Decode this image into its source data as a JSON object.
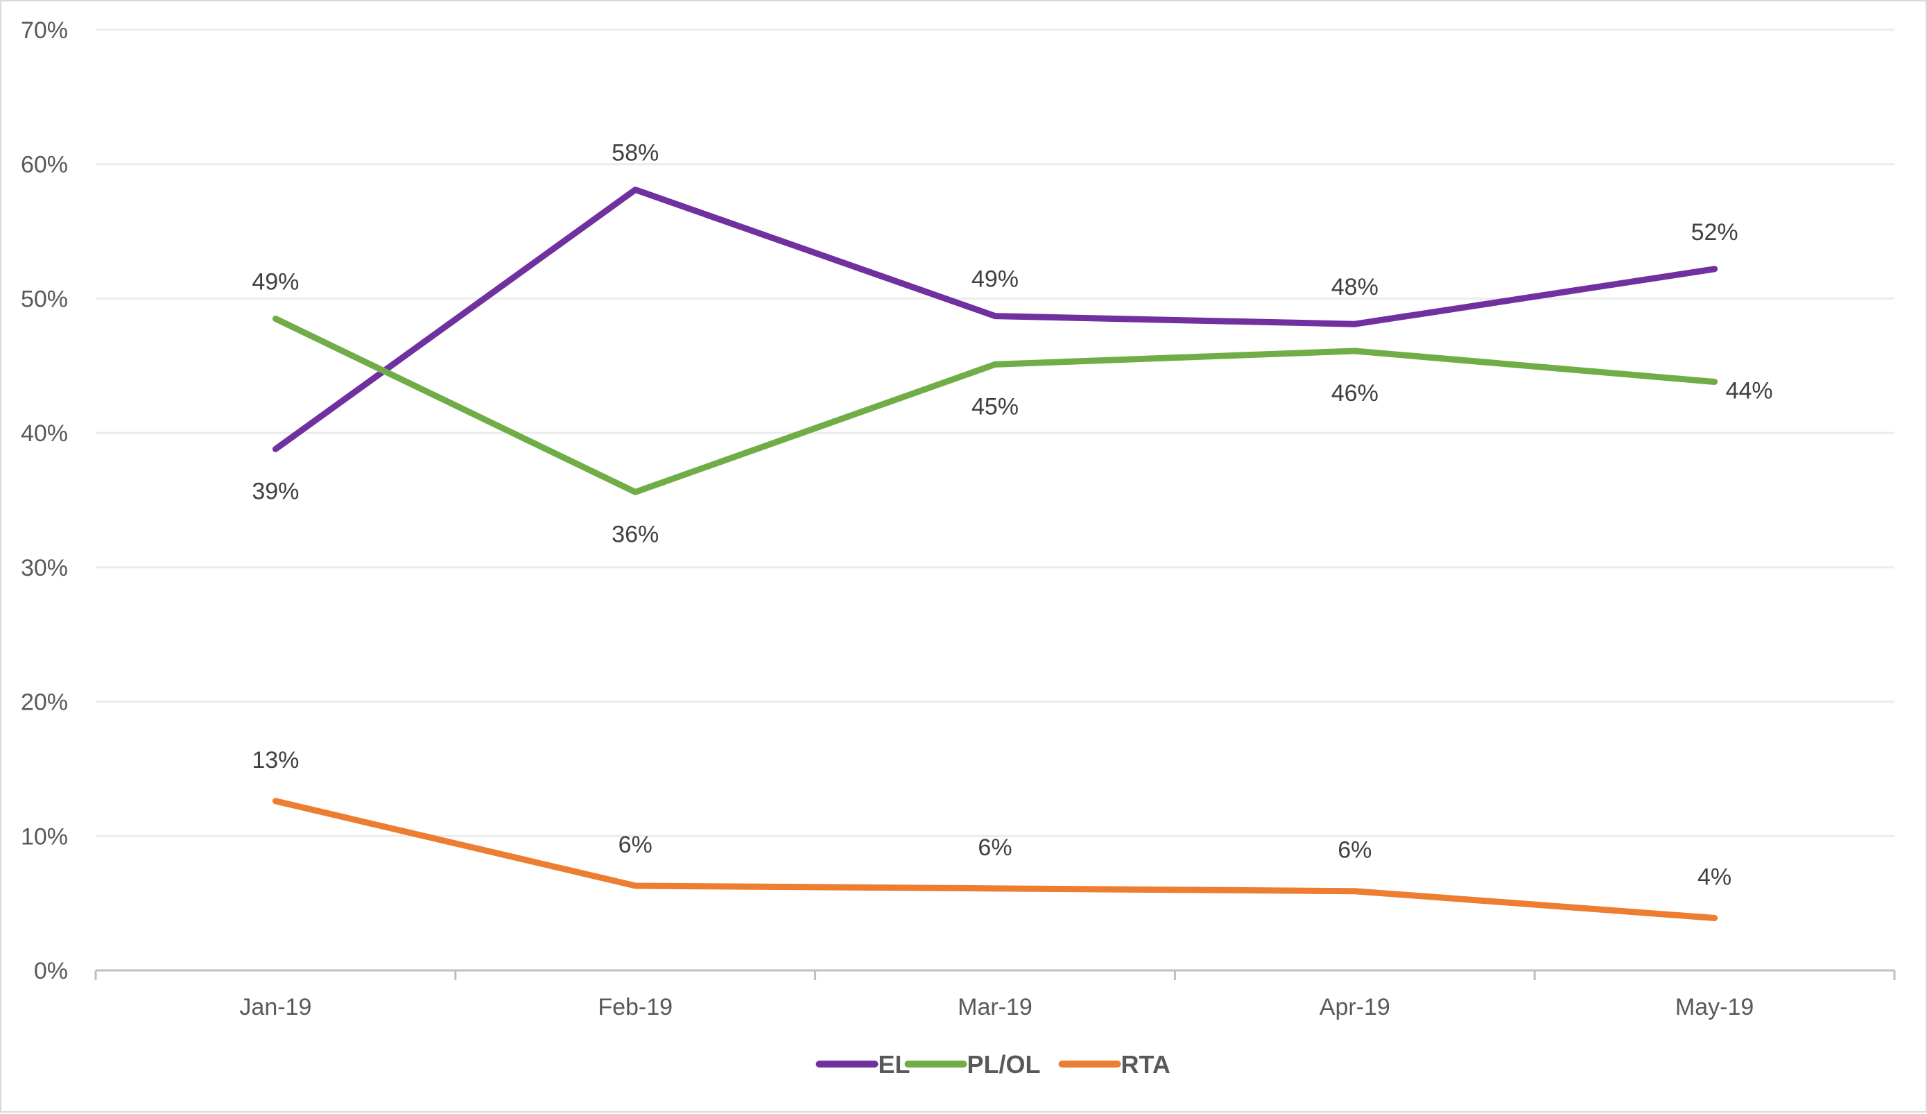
{
  "chart_data": {
    "type": "line",
    "title": "",
    "xlabel": "",
    "ylabel": "",
    "categories": [
      "Jan-19",
      "Feb-19",
      "Mar-19",
      "Apr-19",
      "May-19"
    ],
    "ylim": [
      0,
      70
    ],
    "y_ticks": [
      "0%",
      "10%",
      "20%",
      "30%",
      "40%",
      "50%",
      "60%",
      "70%"
    ],
    "grid": true,
    "legend_position": "bottom",
    "series": [
      {
        "name": "EL",
        "color": "#7030a0",
        "values": [
          38.8,
          58.1,
          48.7,
          48.1,
          52.2
        ],
        "labels": [
          "39%",
          "58%",
          "49%",
          "48%",
          "52%"
        ]
      },
      {
        "name": "PL/OL",
        "color": "#70ad47",
        "values": [
          48.5,
          35.6,
          45.1,
          46.1,
          43.8
        ],
        "labels": [
          "49%",
          "36%",
          "45%",
          "46%",
          "44%"
        ]
      },
      {
        "name": "RTA",
        "color": "#ed7d31",
        "values": [
          12.6,
          6.3,
          6.1,
          5.9,
          3.9
        ],
        "labels": [
          "13%",
          "6%",
          "6%",
          "6%",
          "4%"
        ]
      }
    ]
  }
}
